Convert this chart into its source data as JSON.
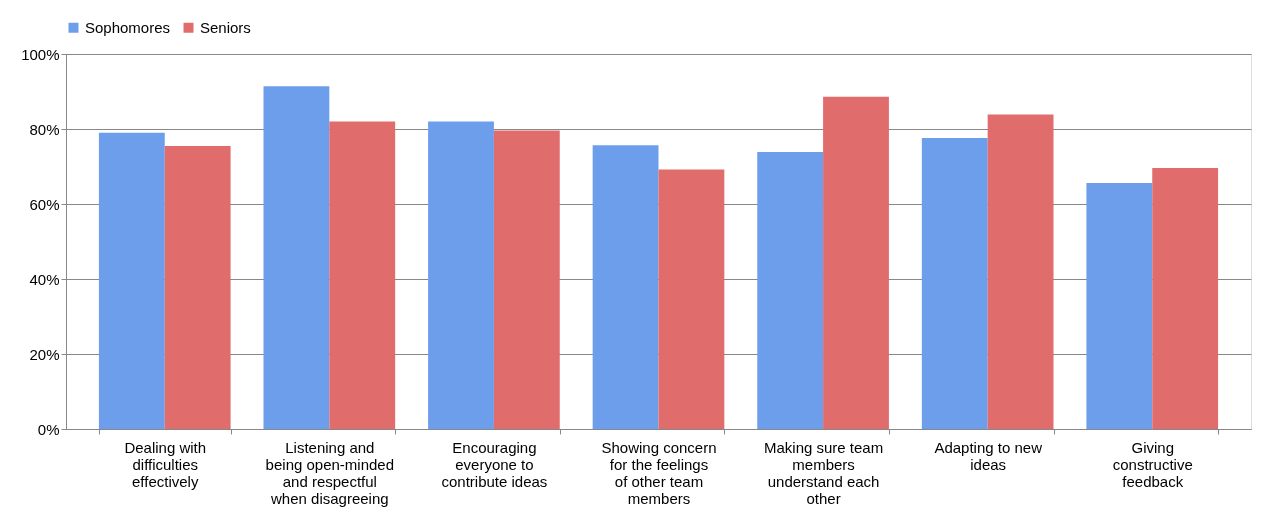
{
  "chart_data": {
    "type": "bar",
    "categories": [
      "Dealing with difficulties effectively",
      "Listening and being open-minded and respectful when disagreeing",
      "Encouraging everyone to contribute ideas",
      "Showing concern for the feelings of other team members",
      "Making sure team members understand each other",
      "Adapting to new ideas",
      "Giving constructive feedback"
    ],
    "series": [
      {
        "name": "Sophomores",
        "color": "#6d9eeb",
        "values": [
          79,
          91.4,
          82,
          75.7,
          73.9,
          77.6,
          65.6
        ]
      },
      {
        "name": "Seniors",
        "color": "#e06c6c",
        "values": [
          75.5,
          82,
          79.6,
          69.2,
          88.6,
          83.9,
          69.6
        ]
      }
    ],
    "ylim": [
      0,
      100
    ],
    "yticks": [
      {
        "value": 0,
        "label": "0%"
      },
      {
        "value": 20,
        "label": "20%"
      },
      {
        "value": 40,
        "label": "40%"
      },
      {
        "value": 60,
        "label": "60%"
      },
      {
        "value": 80,
        "label": "80%"
      },
      {
        "value": 100,
        "label": "100%"
      }
    ],
    "grid": "y",
    "legend": "top"
  }
}
